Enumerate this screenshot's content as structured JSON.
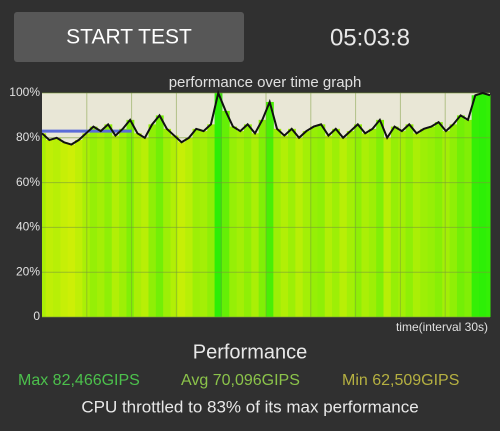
{
  "button": {
    "label": "START TEST"
  },
  "timer": "05:03:8",
  "graph": {
    "title": "performance over time graph",
    "x_label": "time(interval 30s)",
    "ylim": [
      0,
      100
    ],
    "yticks": [
      {
        "value": 0,
        "label": "0"
      },
      {
        "value": 20,
        "label": "20%"
      },
      {
        "value": 40,
        "label": "40%"
      },
      {
        "value": 60,
        "label": "60%"
      },
      {
        "value": 80,
        "label": "80%"
      },
      {
        "value": 100,
        "label": "100%"
      }
    ],
    "threshold": 83,
    "values": [
      82,
      79,
      80,
      78,
      77,
      79,
      82,
      85,
      83,
      86,
      81,
      84,
      88,
      82,
      80,
      86,
      90,
      84,
      81,
      78,
      80,
      84,
      83,
      86,
      100,
      92,
      85,
      83,
      86,
      82,
      88,
      96,
      84,
      81,
      84,
      80,
      83,
      85,
      86,
      81,
      84,
      80,
      83,
      86,
      82,
      84,
      88,
      80,
      85,
      83,
      86,
      82,
      84,
      85,
      87,
      83,
      86,
      90,
      88,
      99,
      100,
      99
    ]
  },
  "summary": {
    "heading": "Performance",
    "max": "Max 82,466GIPS",
    "avg": "Avg 70,096GIPS",
    "min": "Min 62,509GIPS",
    "note": "CPU throttled to 83% of its max performance"
  }
}
